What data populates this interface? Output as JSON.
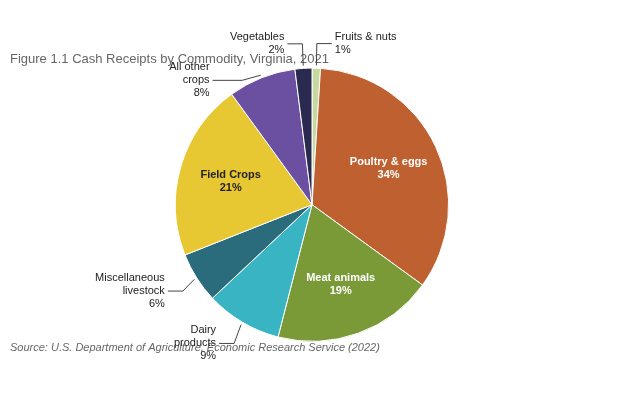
{
  "chart_data": {
    "type": "pie",
    "title": "Figure 1.1 Cash Receipts by Commodity, Virginia, 2021",
    "annotations": [
      "Source: U.S. Department of Agriculture, Economic Research Service (2022)"
    ],
    "categories": [
      "Fruits & nuts",
      "Poultry & eggs",
      "Meat animals",
      "Dairy\nproducts",
      "Miscellaneous\nlivestock",
      "Field Crops",
      "All other\ncrops",
      "Vegetables"
    ],
    "values": [
      1,
      34,
      19,
      9,
      6,
      21,
      8,
      2
    ],
    "value_labels": [
      "1%",
      "34%",
      "19%",
      "9%",
      "6%",
      "21%",
      "8%",
      "2%"
    ],
    "colors": [
      "#c5d9a0",
      "#bf6030",
      "#7a9a38",
      "#38b4c2",
      "#2a6b7c",
      "#e8c832",
      "#6b4fa0",
      "#2a2a50"
    ],
    "data_labels": true,
    "legend": false
  }
}
